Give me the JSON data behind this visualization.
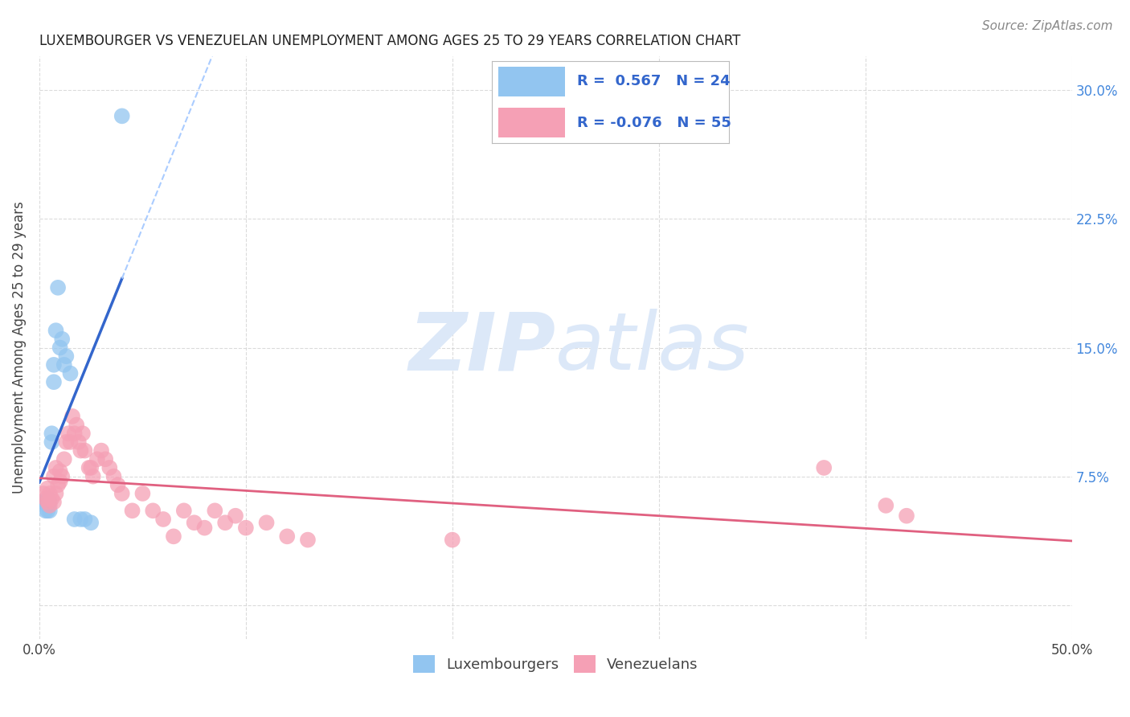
{
  "title": "LUXEMBOURGER VS VENEZUELAN UNEMPLOYMENT AMONG AGES 25 TO 29 YEARS CORRELATION CHART",
  "source": "Source: ZipAtlas.com",
  "ylabel": "Unemployment Among Ages 25 to 29 years",
  "xlim": [
    0.0,
    0.5
  ],
  "ylim": [
    -0.02,
    0.32
  ],
  "xticks": [
    0.0,
    0.1,
    0.2,
    0.3,
    0.4,
    0.5
  ],
  "xticklabels": [
    "0.0%",
    "",
    "",
    "",
    "",
    "50.0%"
  ],
  "yticks": [
    0.0,
    0.075,
    0.15,
    0.225,
    0.3
  ],
  "yticklabels_right": [
    "",
    "7.5%",
    "15.0%",
    "22.5%",
    "30.0%"
  ],
  "blue_color": "#92C5F0",
  "pink_color": "#F5A0B5",
  "blue_line_color": "#3366CC",
  "pink_line_color": "#E06080",
  "background_color": "#FFFFFF",
  "grid_color": "#CCCCCC",
  "lux_x": [
    0.002,
    0.003,
    0.003,
    0.004,
    0.004,
    0.004,
    0.005,
    0.005,
    0.006,
    0.006,
    0.007,
    0.007,
    0.008,
    0.009,
    0.01,
    0.011,
    0.012,
    0.013,
    0.015,
    0.017,
    0.02,
    0.022,
    0.025,
    0.04
  ],
  "lux_y": [
    0.06,
    0.055,
    0.06,
    0.055,
    0.058,
    0.062,
    0.055,
    0.06,
    0.095,
    0.1,
    0.13,
    0.14,
    0.16,
    0.185,
    0.15,
    0.155,
    0.14,
    0.145,
    0.135,
    0.05,
    0.05,
    0.05,
    0.048,
    0.285
  ],
  "ven_x": [
    0.002,
    0.003,
    0.004,
    0.004,
    0.005,
    0.005,
    0.006,
    0.007,
    0.007,
    0.008,
    0.008,
    0.009,
    0.01,
    0.01,
    0.011,
    0.012,
    0.013,
    0.014,
    0.015,
    0.016,
    0.017,
    0.018,
    0.019,
    0.02,
    0.021,
    0.022,
    0.024,
    0.025,
    0.026,
    0.028,
    0.03,
    0.032,
    0.034,
    0.036,
    0.038,
    0.04,
    0.045,
    0.05,
    0.055,
    0.06,
    0.065,
    0.07,
    0.075,
    0.08,
    0.085,
    0.09,
    0.095,
    0.1,
    0.11,
    0.12,
    0.13,
    0.2,
    0.38,
    0.41,
    0.42
  ],
  "ven_y": [
    0.065,
    0.062,
    0.06,
    0.068,
    0.058,
    0.065,
    0.062,
    0.06,
    0.075,
    0.065,
    0.08,
    0.07,
    0.072,
    0.078,
    0.075,
    0.085,
    0.095,
    0.1,
    0.095,
    0.11,
    0.1,
    0.105,
    0.095,
    0.09,
    0.1,
    0.09,
    0.08,
    0.08,
    0.075,
    0.085,
    0.09,
    0.085,
    0.08,
    0.075,
    0.07,
    0.065,
    0.055,
    0.065,
    0.055,
    0.05,
    0.04,
    0.055,
    0.048,
    0.045,
    0.055,
    0.048,
    0.052,
    0.045,
    0.048,
    0.04,
    0.038,
    0.038,
    0.08,
    0.058,
    0.052
  ],
  "marker_size": 200,
  "marker_alpha": 0.75,
  "title_fontsize": 12,
  "tick_fontsize": 12,
  "ylabel_fontsize": 12,
  "source_fontsize": 11,
  "legend_fontsize": 13
}
